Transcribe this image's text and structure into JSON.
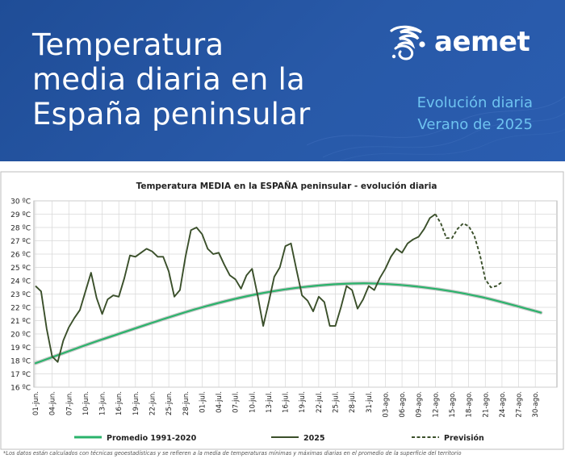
{
  "header": {
    "title_lines": [
      "Temperatura",
      "media diaria en la",
      "España peninsular"
    ],
    "brand": "aemet",
    "subtitle_lines": [
      "Evolución diaria",
      "Verano de 2025"
    ],
    "bg_color": "#234f9c",
    "subtitle_color": "#6ec3f0",
    "logo_icon": "aemet-swirl-icon"
  },
  "chart_data": {
    "type": "line",
    "title": "Temperatura MEDIA en la ESPAÑA peninsular - evolución diaria",
    "y_unit": "ºC",
    "ylim": [
      16,
      30
    ],
    "y_ticks": [
      "30 ºC",
      "29 ºC",
      "28 ºC",
      "27 ºC",
      "26 ºC",
      "25 ºC",
      "24 ºC",
      "23 ºC",
      "22 ºC",
      "21 ºC",
      "20 ºC",
      "19 ºC",
      "18 ºC",
      "17 ºC",
      "16 ºC"
    ],
    "x_ticks": [
      "01-jun.",
      "04-jun.",
      "07-jun.",
      "10-jun.",
      "13-jun.",
      "16-jun.",
      "19-jun.",
      "22-jun.",
      "25-jun.",
      "28-jun.",
      "01-jul.",
      "04-jul.",
      "07-jul.",
      "10-jul.",
      "13-jul.",
      "16-jul.",
      "19-jul.",
      "22-jul.",
      "25-jul.",
      "28-jul.",
      "31-jul.",
      "03-ago.",
      "06-ago.",
      "09-ago.",
      "12-ago.",
      "15-ago.",
      "18-ago.",
      "21-ago.",
      "24-ago.",
      "27-ago.",
      "30-ago."
    ],
    "grid": true,
    "legend_position": "bottom",
    "series": [
      {
        "name": "Promedio 1991-2020",
        "color": "#2ab36b",
        "style": "solid",
        "start": "01-jun.",
        "x": [
          "01-jun.",
          "11-jun.",
          "21-jun.",
          "01-jul.",
          "11-jul.",
          "21-jul.",
          "31-jul.",
          "10-ago.",
          "20-ago.",
          "31-ago."
        ],
        "values": [
          17.8,
          19.3,
          20.7,
          22.0,
          23.0,
          23.6,
          23.8,
          23.5,
          22.8,
          21.6
        ]
      },
      {
        "name": "2025",
        "color": "#3a4f2a",
        "style": "solid",
        "start": "01-jun.",
        "values": [
          23.6,
          23.2,
          20.4,
          18.3,
          17.9,
          19.5,
          20.5,
          21.2,
          21.8,
          23.2,
          24.6,
          22.7,
          21.5,
          22.6,
          22.9,
          22.8,
          24.2,
          25.9,
          25.8,
          26.1,
          26.4,
          26.2,
          25.8,
          25.8,
          24.7,
          22.8,
          23.3,
          25.8,
          27.8,
          28.0,
          27.5,
          26.4,
          26.0,
          26.1,
          25.2,
          24.4,
          24.1,
          23.4,
          24.4,
          24.9,
          22.9,
          20.6,
          22.4,
          24.3,
          25.0,
          26.6,
          26.8,
          24.8,
          22.9,
          22.5,
          21.7,
          22.8,
          22.4,
          20.6,
          20.6,
          22.0,
          23.6,
          23.3,
          21.9,
          22.6,
          23.6,
          23.3,
          24.2,
          24.9,
          25.8,
          26.4,
          26.1,
          26.8,
          27.1,
          27.3,
          27.9,
          28.7,
          29.0
        ]
      },
      {
        "name": "Previsión",
        "color": "#3a4f2a",
        "style": "dashed",
        "start": "12-ago.",
        "values": [
          29.0,
          28.3,
          27.2,
          27.2,
          27.9,
          28.3,
          28.1,
          27.4,
          26.0,
          24.1,
          23.5,
          23.6,
          23.9
        ]
      }
    ]
  },
  "footnote": "*Los datos están calculados con técnicas geoestadísticas y se refieren a la media de temperaturas mínimas y máximas diarias en el promedio de la superficie del territorio"
}
